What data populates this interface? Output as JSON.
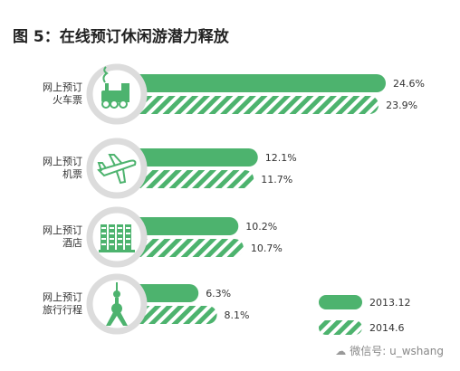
{
  "title": "图 5：在线预订休闲游潜力释放",
  "watermark": "微信号: u_wshang",
  "colors": {
    "solid": "#4db36e",
    "hatch": "#4db36e",
    "ring": "#dcdcdc",
    "icon": "#4db36e"
  },
  "chart_data": {
    "type": "bar",
    "orientation": "horizontal",
    "categories": [
      [
        "网上预订",
        "火车票"
      ],
      [
        "网上预订",
        "机票"
      ],
      [
        "网上预订",
        "酒店"
      ],
      [
        "网上预订",
        "旅行行程"
      ]
    ],
    "icons": [
      "train-icon",
      "airplane-icon",
      "hotel-icon",
      "tower-icon"
    ],
    "series": [
      {
        "name": "2013.12",
        "style": "solid",
        "values": [
          24.6,
          12.1,
          10.2,
          6.3
        ],
        "labels": [
          "24.6%",
          "12.1%",
          "10.2%",
          "6.3%"
        ]
      },
      {
        "name": "2014.6",
        "style": "hatched",
        "values": [
          23.9,
          11.7,
          10.7,
          8.1
        ],
        "labels": [
          "23.9%",
          "11.7%",
          "10.7%",
          "8.1%"
        ]
      }
    ],
    "xlim": [
      0,
      24.6
    ],
    "legend_position": "bottom-right"
  }
}
